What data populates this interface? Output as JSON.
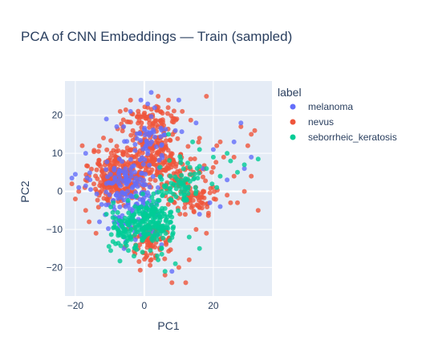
{
  "chart_data": {
    "type": "scatter",
    "title": "PCA of CNN Embeddings — Train (sampled)",
    "xlabel": "PC1",
    "ylabel": "PC2",
    "xlim": [
      -23,
      37
    ],
    "ylim": [
      -27.5,
      29
    ],
    "x_ticks": [
      -20,
      0,
      20
    ],
    "x_tick_labels": [
      "−20",
      "0",
      "20"
    ],
    "y_ticks": [
      -20,
      -10,
      0,
      10,
      20
    ],
    "y_tick_labels": [
      "−20",
      "−10",
      "0",
      "10",
      "20"
    ],
    "grid": true,
    "legend": {
      "title": "label",
      "placement": "right"
    },
    "plot_background": "#e5ecf6",
    "series": [
      {
        "name": "melanoma",
        "color": "#636efa",
        "opacity": 0.8,
        "clusters": [
          {
            "cx": -5,
            "cy": 2,
            "sx": 9,
            "sy": 8,
            "n": 140
          },
          {
            "cx": 2,
            "cy": 14,
            "sx": 5,
            "sy": 4,
            "n": 40
          },
          {
            "cx": -3,
            "cy": -8,
            "sx": 7,
            "sy": 6,
            "n": 50
          }
        ],
        "points": [
          [
            -20,
            4.5
          ],
          [
            2,
            26
          ],
          [
            28,
            18
          ],
          [
            26,
            13
          ],
          [
            19,
            -3
          ],
          [
            24,
            3
          ],
          [
            -11,
            19
          ],
          [
            -4,
            21
          ],
          [
            1,
            23
          ],
          [
            3,
            22
          ],
          [
            -8,
            17
          ],
          [
            20,
            11
          ],
          [
            31,
            9
          ],
          [
            9,
            16
          ],
          [
            5,
            -14
          ],
          [
            -13,
            -8
          ],
          [
            12,
            1
          ],
          [
            16,
            -6
          ],
          [
            -1,
            24
          ],
          [
            15,
            18
          ],
          [
            -17,
            10
          ],
          [
            -21,
            3.5
          ],
          [
            -19,
            1
          ],
          [
            29,
            6
          ],
          [
            17,
            6
          ],
          [
            8,
            -21
          ],
          [
            22,
            -4
          ],
          [
            -6,
            17
          ],
          [
            10,
            24
          ]
        ]
      },
      {
        "name": "nevus",
        "color": "#ef553b",
        "opacity": 0.8,
        "clusters": [
          {
            "cx": -8,
            "cy": 4,
            "sx": 6.5,
            "sy": 6.5,
            "n": 260
          },
          {
            "cx": 3,
            "cy": 9,
            "sx": 8,
            "sy": 7,
            "n": 220
          },
          {
            "cx": 14,
            "cy": 0,
            "sx": 7,
            "sy": 6,
            "n": 100
          },
          {
            "cx": 2,
            "cy": -13,
            "sx": 6,
            "sy": 5,
            "n": 90
          },
          {
            "cx": 2,
            "cy": 19,
            "sx": 8,
            "sy": 3.5,
            "n": 70
          },
          {
            "cx": 24,
            "cy": 7,
            "sx": 4,
            "sy": 5,
            "n": 35
          }
        ],
        "points": [
          [
            33,
            -5
          ],
          [
            32,
            16
          ],
          [
            31,
            15
          ],
          [
            18,
            25
          ],
          [
            8,
            -24
          ],
          [
            10,
            -20
          ],
          [
            -21,
            2
          ],
          [
            -19,
            0
          ],
          [
            -20,
            -2
          ],
          [
            28,
            17
          ],
          [
            26,
            4
          ],
          [
            29,
            0
          ],
          [
            27,
            -3
          ],
          [
            25,
            -3
          ],
          [
            22,
            13
          ],
          [
            30,
            12
          ],
          [
            12,
            -24
          ],
          [
            6,
            -22
          ],
          [
            21,
            12
          ],
          [
            23,
            9
          ],
          [
            16,
            14
          ],
          [
            13,
            -18
          ],
          [
            24,
            -1
          ],
          [
            -16,
            -8
          ],
          [
            -14,
            -11
          ],
          [
            -4,
            24
          ],
          [
            4,
            25
          ],
          [
            -7,
            21
          ],
          [
            7,
            24
          ],
          [
            11,
            21
          ],
          [
            18,
            -11
          ],
          [
            15,
            -10
          ],
          [
            26,
            9
          ],
          [
            31,
            4
          ],
          [
            -18,
            12
          ],
          [
            -17,
            -5
          ]
        ]
      },
      {
        "name": "seborrheic_keratosis",
        "color": "#00cc96",
        "opacity": 0.8,
        "clusters": [
          {
            "cx": 2,
            "cy": -8,
            "sx": 5.5,
            "sy": 6,
            "n": 190
          },
          {
            "cx": 11,
            "cy": 2,
            "sx": 6,
            "sy": 5,
            "n": 70
          },
          {
            "cx": -6,
            "cy": -10,
            "sx": 4,
            "sy": 5,
            "n": 60
          }
        ],
        "points": [
          [
            33,
            8.5
          ],
          [
            29,
            7
          ],
          [
            27,
            5
          ],
          [
            25,
            8
          ],
          [
            22,
            4
          ],
          [
            21,
            1
          ],
          [
            24,
            10
          ],
          [
            16,
            11
          ],
          [
            14,
            13
          ],
          [
            9,
            -19
          ],
          [
            4,
            -18
          ],
          [
            -3,
            -17
          ],
          [
            13,
            -12
          ],
          [
            16,
            -15
          ],
          [
            6,
            -21
          ],
          [
            -9,
            -3
          ],
          [
            -11,
            -6
          ],
          [
            18,
            6
          ],
          [
            20,
            9
          ],
          [
            7,
            15
          ]
        ]
      }
    ]
  }
}
